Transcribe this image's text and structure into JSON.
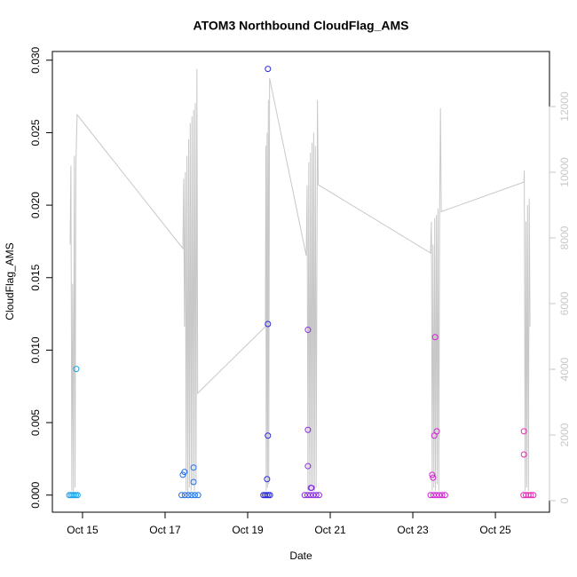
{
  "chart_data": {
    "type": "scatter",
    "title": "ATOM3 Northbound CloudFlag_AMS",
    "xlabel": "Date",
    "ylabel": "CloudFlag_AMS",
    "xlim": [
      14.27,
      26.31
    ],
    "xticks": [
      {
        "value": 15,
        "label": "Oct 15"
      },
      {
        "value": 17,
        "label": "Oct 17"
      },
      {
        "value": 19,
        "label": "Oct 19"
      },
      {
        "value": 21,
        "label": "Oct 21"
      },
      {
        "value": 23,
        "label": "Oct 23"
      },
      {
        "value": 25,
        "label": "Oct 25"
      }
    ],
    "ylim": [
      -0.00118,
      0.0306
    ],
    "yticks": [
      {
        "value": 0,
        "label": "0.000"
      },
      {
        "value": 0.005,
        "label": "0.005"
      },
      {
        "value": 0.01,
        "label": "0.010"
      },
      {
        "value": 0.015,
        "label": "0.015"
      },
      {
        "value": 0.02,
        "label": "0.020"
      },
      {
        "value": 0.025,
        "label": "0.025"
      },
      {
        "value": 0.03,
        "label": "0.030"
      }
    ],
    "y2lim": [
      -351,
      13676
    ],
    "y2ticks": [
      0,
      2000,
      4000,
      6000,
      8000,
      10000,
      12000
    ],
    "y2color": "#c8c8c8",
    "series": [
      {
        "color": "#1ca3ec",
        "x": [
          14.68,
          14.72,
          14.76,
          14.8,
          14.84,
          14.88,
          14.85
        ],
        "values": [
          0,
          0,
          0,
          0,
          0,
          0,
          0.0087
        ]
      },
      {
        "color": "#1f6fe8",
        "x": [
          17.4,
          17.48,
          17.56,
          17.64,
          17.72,
          17.8,
          17.43,
          17.47,
          17.69,
          17.69
        ],
        "values": [
          0,
          0,
          0,
          0,
          0,
          0,
          0.0014,
          0.0016,
          0.0019,
          0.0009
        ]
      },
      {
        "color": "#2a2ae0",
        "x": [
          19.38,
          19.42,
          19.46,
          19.5,
          19.54,
          19.49,
          19.49,
          19.49,
          19.47
        ],
        "values": [
          0,
          0,
          0,
          0,
          0,
          0.0294,
          0.0118,
          0.0041,
          0.0011
        ]
      },
      {
        "color": "#8a2be2",
        "x": [
          20.38,
          20.45,
          20.52,
          20.59,
          20.66,
          20.73,
          20.46,
          20.46,
          20.46,
          20.53,
          20.55
        ],
        "values": [
          0,
          0,
          0,
          0,
          0,
          0,
          0.0114,
          0.0045,
          0.002,
          0.0005,
          0.0005
        ]
      },
      {
        "color": "#d21fd2",
        "x": [
          23.43,
          23.5,
          23.57,
          23.64,
          23.71,
          23.78,
          23.54,
          23.52,
          23.58,
          23.47,
          23.49
        ],
        "values": [
          0,
          0,
          0,
          0,
          0,
          0,
          0.0109,
          0.0041,
          0.0044,
          0.0014,
          0.0012
        ]
      },
      {
        "color": "#e52bb8",
        "x": [
          25.68,
          25.74,
          25.8,
          25.86,
          25.92,
          25.69,
          25.69
        ],
        "values": [
          0,
          0,
          0,
          0,
          0,
          0.0044,
          0.0028
        ]
      },
      {
        "color": "#c8c8c8",
        "axis": "y2",
        "x": [
          14.7,
          14.72,
          14.74,
          14.76,
          14.78,
          14.8,
          14.82,
          14.84,
          14.87,
          17.43,
          17.45,
          17.47,
          17.49,
          17.51,
          17.53,
          17.55,
          17.57,
          17.59,
          17.61,
          17.63,
          17.65,
          17.67,
          17.69,
          17.71,
          17.73,
          17.75,
          17.77,
          17.79,
          19.43,
          19.44,
          19.45,
          19.47,
          19.48,
          19.5,
          19.51,
          19.53,
          20.42,
          20.44,
          20.46,
          20.48,
          20.5,
          20.52,
          20.54,
          20.56,
          20.58,
          20.6,
          20.62,
          20.64,
          20.66,
          20.69,
          20.71,
          23.43,
          23.45,
          23.47,
          23.49,
          23.51,
          23.53,
          23.55,
          23.57,
          23.59,
          23.61,
          23.63,
          23.65,
          23.67,
          23.69,
          25.69,
          25.7,
          25.72,
          25.74,
          25.76,
          25.78,
          25.8,
          25.82,
          25.84
        ],
        "values": [
          7800,
          10200,
          300,
          6600,
          200,
          10500,
          400,
          10300,
          11750,
          7680,
          9800,
          5300,
          10000,
          300,
          10500,
          200,
          11000,
          400,
          11500,
          300,
          11700,
          500,
          11900,
          300,
          12100,
          600,
          13150,
          3270,
          5300,
          10800,
          300,
          11200,
          400,
          12200,
          500,
          12860,
          7460,
          9600,
          300,
          10300,
          400,
          10600,
          300,
          10900,
          500,
          11200,
          300,
          10800,
          400,
          12200,
          9620,
          7540,
          8500,
          300,
          7800,
          400,
          8600,
          300,
          8700,
          500,
          8900,
          300,
          9100,
          11950,
          8800,
          9700,
          10050,
          300,
          8500,
          400,
          9000,
          300,
          9200,
          5300
        ]
      }
    ]
  }
}
